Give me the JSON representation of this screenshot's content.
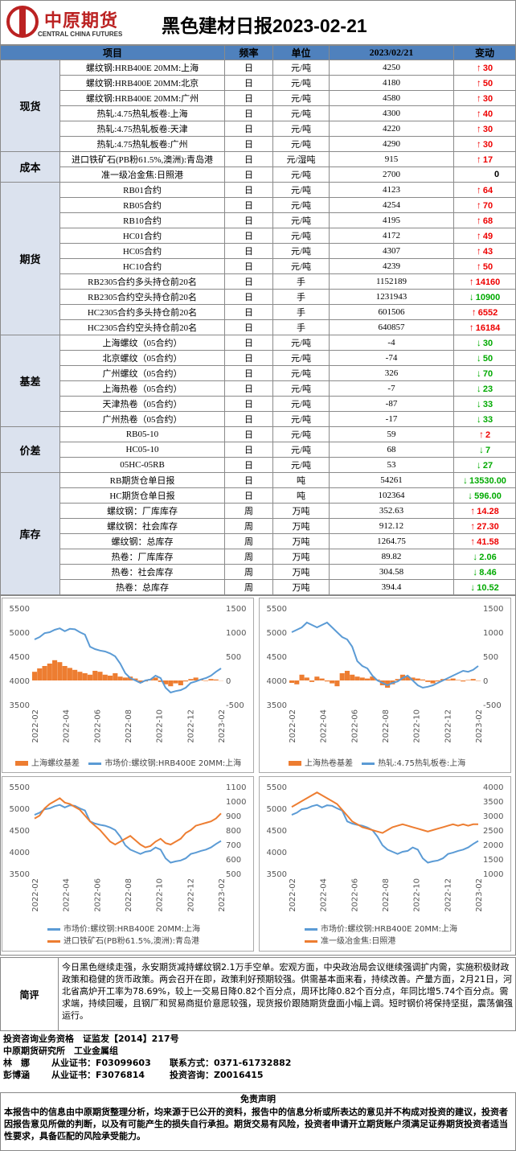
{
  "header": {
    "logo_name": "中原期货",
    "logo_sub": "CENTRAL CHINA FUTURES",
    "title": "黑色建材日报2023-02-21"
  },
  "table": {
    "headers": [
      "项目",
      "频率",
      "单位",
      "2023/02/21",
      "变动"
    ],
    "groups": [
      {
        "category": "现货",
        "rows": [
          {
            "item": "螺纹钢:HRB400E 20MM:上海",
            "freq": "日",
            "unit": "元/吨",
            "value": "4250",
            "change": "30",
            "dir": "up"
          },
          {
            "item": "螺纹钢:HRB400E 20MM:北京",
            "freq": "日",
            "unit": "元/吨",
            "value": "4180",
            "change": "50",
            "dir": "up"
          },
          {
            "item": "螺纹钢:HRB400E 20MM:广州",
            "freq": "日",
            "unit": "元/吨",
            "value": "4580",
            "change": "30",
            "dir": "up"
          },
          {
            "item": "热轧:4.75热轧板卷:上海",
            "freq": "日",
            "unit": "元/吨",
            "value": "4300",
            "change": "40",
            "dir": "up"
          },
          {
            "item": "热轧:4.75热轧板卷:天津",
            "freq": "日",
            "unit": "元/吨",
            "value": "4220",
            "change": "30",
            "dir": "up"
          },
          {
            "item": "热轧:4.75热轧板卷:广州",
            "freq": "日",
            "unit": "元/吨",
            "value": "4290",
            "change": "30",
            "dir": "up"
          }
        ]
      },
      {
        "category": "成本",
        "rows": [
          {
            "item": "进口铁矿石(PB粉61.5%,澳洲):青岛港",
            "freq": "日",
            "unit": "元/湿吨",
            "value": "915",
            "change": "17",
            "dir": "up"
          },
          {
            "item": "准一级冶金焦:日照港",
            "freq": "日",
            "unit": "元/吨",
            "value": "2700",
            "change": "0",
            "dir": "none"
          }
        ]
      },
      {
        "category": "期货",
        "rows": [
          {
            "item": "RB01合约",
            "freq": "日",
            "unit": "元/吨",
            "value": "4123",
            "change": "64",
            "dir": "up"
          },
          {
            "item": "RB05合约",
            "freq": "日",
            "unit": "元/吨",
            "value": "4254",
            "change": "70",
            "dir": "up"
          },
          {
            "item": "RB10合约",
            "freq": "日",
            "unit": "元/吨",
            "value": "4195",
            "change": "68",
            "dir": "up"
          },
          {
            "item": "HC01合约",
            "freq": "日",
            "unit": "元/吨",
            "value": "4172",
            "change": "49",
            "dir": "up"
          },
          {
            "item": "HC05合约",
            "freq": "日",
            "unit": "元/吨",
            "value": "4307",
            "change": "43",
            "dir": "up"
          },
          {
            "item": "HC10合约",
            "freq": "日",
            "unit": "元/吨",
            "value": "4239",
            "change": "50",
            "dir": "up"
          },
          {
            "item": "RB2305合约多头持仓前20名",
            "freq": "日",
            "unit": "手",
            "value": "1152189",
            "change": "14160",
            "dir": "up"
          },
          {
            "item": "RB2305合约空头持仓前20名",
            "freq": "日",
            "unit": "手",
            "value": "1231943",
            "change": "10900",
            "dir": "down"
          },
          {
            "item": "HC2305合约多头持仓前20名",
            "freq": "日",
            "unit": "手",
            "value": "601506",
            "change": "6552",
            "dir": "up"
          },
          {
            "item": "HC2305合约空头持仓前20名",
            "freq": "日",
            "unit": "手",
            "value": "640857",
            "change": "16184",
            "dir": "up"
          }
        ]
      },
      {
        "category": "基差",
        "rows": [
          {
            "item": "上海螺纹（05合约）",
            "freq": "日",
            "unit": "元/吨",
            "value": "-4",
            "change": "30",
            "dir": "down"
          },
          {
            "item": "北京螺纹（05合约）",
            "freq": "日",
            "unit": "元/吨",
            "value": "-74",
            "change": "50",
            "dir": "down"
          },
          {
            "item": "广州螺纹（05合约）",
            "freq": "日",
            "unit": "元/吨",
            "value": "326",
            "change": "70",
            "dir": "down"
          },
          {
            "item": "上海热卷（05合约）",
            "freq": "日",
            "unit": "元/吨",
            "value": "-7",
            "change": "23",
            "dir": "down"
          },
          {
            "item": "天津热卷（05合约）",
            "freq": "日",
            "unit": "元/吨",
            "value": "-87",
            "change": "33",
            "dir": "down"
          },
          {
            "item": "广州热卷（05合约）",
            "freq": "日",
            "unit": "元/吨",
            "value": "-17",
            "change": "33",
            "dir": "down"
          }
        ]
      },
      {
        "category": "价差",
        "rows": [
          {
            "item": "RB05-10",
            "freq": "日",
            "unit": "元/吨",
            "value": "59",
            "change": "2",
            "dir": "up"
          },
          {
            "item": "HC05-10",
            "freq": "日",
            "unit": "元/吨",
            "value": "68",
            "change": "7",
            "dir": "down"
          },
          {
            "item": "05HC-05RB",
            "freq": "日",
            "unit": "元/吨",
            "value": "53",
            "change": "27",
            "dir": "down"
          }
        ]
      },
      {
        "category": "库存",
        "rows": [
          {
            "item": "RB期货仓单日报",
            "freq": "日",
            "unit": "吨",
            "value": "54261",
            "change": "13530.00",
            "dir": "down"
          },
          {
            "item": "HC期货仓单日报",
            "freq": "日",
            "unit": "吨",
            "value": "102364",
            "change": "596.00",
            "dir": "down"
          },
          {
            "item": "螺纹钢：厂库库存",
            "freq": "周",
            "unit": "万吨",
            "value": "352.63",
            "change": "14.28",
            "dir": "up"
          },
          {
            "item": "螺纹钢：社会库存",
            "freq": "周",
            "unit": "万吨",
            "value": "912.12",
            "change": "27.30",
            "dir": "up"
          },
          {
            "item": "螺纹钢：总库存",
            "freq": "周",
            "unit": "万吨",
            "value": "1264.75",
            "change": "41.58",
            "dir": "up"
          },
          {
            "item": "热卷：厂库库存",
            "freq": "周",
            "unit": "万吨",
            "value": "89.82",
            "change": "2.06",
            "dir": "down"
          },
          {
            "item": "热卷：社会库存",
            "freq": "周",
            "unit": "万吨",
            "value": "304.58",
            "change": "8.46",
            "dir": "down"
          },
          {
            "item": "热卷：总库存",
            "freq": "周",
            "unit": "万吨",
            "value": "394.4",
            "change": "10.52",
            "dir": "down"
          }
        ]
      }
    ]
  },
  "chart_data": [
    {
      "type": "line",
      "x_ticks": [
        "2022-02",
        "2022-04",
        "2022-06",
        "2022-08",
        "2022-10",
        "2022-12",
        "2023-02"
      ],
      "ylim_left": [
        3500,
        5500
      ],
      "yticks_left": [
        "5500",
        "5000",
        "4500",
        "4000",
        "3500"
      ],
      "ylim_right": [
        -500,
        1500
      ],
      "yticks_right": [
        "1500",
        "1000",
        "500",
        "0",
        "-500"
      ],
      "series": [
        {
          "name": "上海螺纹基差",
          "kind": "area",
          "color": "#ed7d31",
          "axis": "right",
          "values": [
            180,
            250,
            300,
            350,
            420,
            380,
            300,
            260,
            220,
            180,
            150,
            120,
            200,
            180,
            120,
            100,
            150,
            80,
            60,
            80,
            40,
            -50,
            -20,
            30,
            60,
            -30,
            -80,
            -120,
            -60,
            -100,
            -20,
            30,
            60,
            20,
            -10,
            30,
            20,
            -4
          ]
        },
        {
          "name": "市场价:螺纹钢:HRB400E 20MM:上海",
          "kind": "line",
          "color": "#5b9bd5",
          "axis": "left",
          "values": [
            4850,
            4900,
            4980,
            5000,
            5050,
            5080,
            5020,
            5070,
            5060,
            5000,
            4950,
            4700,
            4650,
            4620,
            4600,
            4560,
            4500,
            4350,
            4150,
            4050,
            4000,
            3950,
            4000,
            4020,
            4100,
            4050,
            3850,
            3750,
            3780,
            3800,
            3850,
            3950,
            3980,
            4020,
            4050,
            4100,
            4180,
            4250
          ]
        }
      ]
    },
    {
      "type": "line",
      "x_ticks": [
        "2022-02",
        "2022-04",
        "2022-06",
        "2022-08",
        "2022-10",
        "2022-12",
        "2023-02"
      ],
      "ylim_left": [
        3500,
        5500
      ],
      "yticks_left": [
        "5500",
        "5000",
        "4500",
        "4000",
        "3500"
      ],
      "ylim_right": [
        -500,
        1500
      ],
      "yticks_right": [
        "1500",
        "1000",
        "500",
        "0",
        "-500"
      ],
      "series": [
        {
          "name": "上海热卷基差",
          "kind": "area",
          "color": "#ed7d31",
          "axis": "right",
          "values": [
            -50,
            -80,
            120,
            60,
            -30,
            80,
            40,
            -20,
            -60,
            -120,
            150,
            200,
            120,
            80,
            60,
            40,
            80,
            20,
            -100,
            -150,
            -80,
            30,
            120,
            80,
            60,
            40,
            20,
            -30,
            -60,
            -20,
            30,
            20,
            40,
            10,
            -20,
            10,
            30,
            -7
          ]
        },
        {
          "name": "热轧:4.75热轧板卷:上海",
          "kind": "line",
          "color": "#5b9bd5",
          "axis": "left",
          "values": [
            5000,
            5050,
            5100,
            5200,
            5150,
            5100,
            5150,
            5200,
            5100,
            5000,
            4900,
            4850,
            4700,
            4400,
            4300,
            4250,
            4100,
            4000,
            3950,
            3900,
            3950,
            3980,
            4050,
            4100,
            4000,
            3900,
            3850,
            3870,
            3900,
            3950,
            4000,
            4050,
            4100,
            4150,
            4200,
            4180,
            4220,
            4300
          ]
        }
      ]
    },
    {
      "type": "line",
      "x_ticks": [
        "2022-02",
        "2022-04",
        "2022-06",
        "2022-08",
        "2022-10",
        "2022-12",
        "2023-02"
      ],
      "ylim_left": [
        3500,
        5500
      ],
      "yticks_left": [
        "5500",
        "5000",
        "4500",
        "4000",
        "3500"
      ],
      "ylim_right": [
        500,
        1100
      ],
      "yticks_right": [
        "1100",
        "1000",
        "900",
        "800",
        "700",
        "600",
        "500"
      ],
      "series": [
        {
          "name": "市场价:螺纹钢:HRB400E 20MM:上海",
          "kind": "line",
          "color": "#5b9bd5",
          "axis": "left",
          "values": [
            4850,
            4900,
            4980,
            5000,
            5050,
            5080,
            5020,
            5070,
            5060,
            5000,
            4950,
            4700,
            4650,
            4620,
            4600,
            4560,
            4500,
            4350,
            4150,
            4050,
            4000,
            3950,
            4000,
            4020,
            4100,
            4050,
            3850,
            3750,
            3780,
            3800,
            3850,
            3950,
            3980,
            4020,
            4050,
            4100,
            4180,
            4250
          ]
        },
        {
          "name": "进口铁矿石(PB粉61.5%,澳洲):青岛港",
          "kind": "line",
          "color": "#ed7d31",
          "axis": "right",
          "values": [
            880,
            900,
            950,
            980,
            1000,
            1020,
            990,
            980,
            960,
            940,
            900,
            860,
            830,
            800,
            760,
            720,
            700,
            720,
            740,
            760,
            730,
            700,
            680,
            690,
            720,
            740,
            710,
            700,
            720,
            740,
            780,
            800,
            830,
            840,
            850,
            860,
            880,
            915
          ]
        }
      ]
    },
    {
      "type": "line",
      "x_ticks": [
        "2022-02",
        "2022-04",
        "2022-06",
        "2022-08",
        "2022-10",
        "2022-12",
        "2023-02"
      ],
      "ylim_left": [
        3500,
        5500
      ],
      "yticks_left": [
        "5500",
        "5000",
        "4500",
        "4000",
        "3500"
      ],
      "ylim_right": [
        1000,
        4000
      ],
      "yticks_right": [
        "4000",
        "3500",
        "3000",
        "2500",
        "2000",
        "1500",
        "1000"
      ],
      "series": [
        {
          "name": "市场价:螺纹钢:HRB400E 20MM:上海",
          "kind": "line",
          "color": "#5b9bd5",
          "axis": "left",
          "values": [
            4850,
            4900,
            4980,
            5000,
            5050,
            5080,
            5020,
            5070,
            5060,
            5000,
            4950,
            4700,
            4650,
            4620,
            4600,
            4560,
            4500,
            4350,
            4150,
            4050,
            4000,
            3950,
            4000,
            4020,
            4100,
            4050,
            3850,
            3750,
            3780,
            3800,
            3850,
            3950,
            3980,
            4020,
            4050,
            4100,
            4180,
            4250
          ]
        },
        {
          "name": "准一级冶金焦:日照港",
          "kind": "line",
          "color": "#ed7d31",
          "axis": "right",
          "values": [
            3300,
            3400,
            3500,
            3600,
            3700,
            3800,
            3700,
            3600,
            3500,
            3400,
            3200,
            3000,
            2800,
            2700,
            2600,
            2550,
            2500,
            2450,
            2400,
            2500,
            2600,
            2650,
            2700,
            2650,
            2600,
            2550,
            2500,
            2450,
            2500,
            2550,
            2600,
            2650,
            2700,
            2650,
            2700,
            2650,
            2700,
            2700
          ]
        }
      ]
    }
  ],
  "comment": {
    "label": "简评",
    "text": "今日黑色继续走强，永安期货减持螺纹钢2.1万手空单。宏观方面，中央政治局会议继续强调扩内需，实施积极财政政策和稳健的货币政策。两会召开在即，政策利好预期较强。供需基本面来看，持续改善。产量方面，2月21日，河北省高炉开工率为78.69%，较上一交易日降0.82个百分点，周环比降0.82个百分点，年同比增5.74个百分点。需求端，持续回暖，且钢厂和贸易商挺价意愿较强，现货报价跟随期货盘面小幅上调。短时钢价将保持坚挺，震荡偏强运行。"
  },
  "footer": {
    "line1": "投资咨询业务资格　证监发【2014】217号",
    "line2": "中原期货研究所　工业金属组",
    "p1_name": "林　娜",
    "p1_cert_label": "从业证书：",
    "p1_cert": "F03099603",
    "contact_label": "联系方式：",
    "contact": "0371-61732882",
    "p2_name": "彭博涵",
    "p2_cert_label": "从业证书：",
    "p2_cert": "F3076814",
    "consult_label": "投资咨询：",
    "consult": "Z0016415"
  },
  "disclaimer": {
    "title": "免责声明",
    "body": "本报告中的信息由中原期货整理分析，均来源于已公开的资料，报告中的信息分析或所表达的意见并不构成对投资的建议，投资者因报告意见所做的判断，以及有可能产生的损失自行承担。期货交易有风险，投资者申请开立期货账户须满足证券期货投资者适当性要求，具备匹配的风险承受能力。"
  }
}
